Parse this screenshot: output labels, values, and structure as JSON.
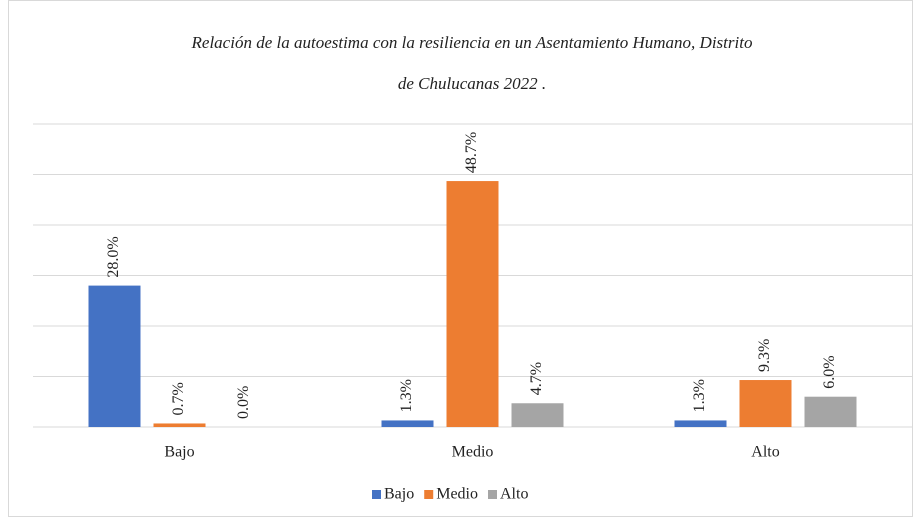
{
  "chart_data": {
    "type": "bar",
    "title": [
      "Relación de la autoestima con la resiliencia en un Asentamiento Humano, Distrito",
      "de Chulucanas 2022 ."
    ],
    "categories": [
      "Bajo",
      "Medio",
      "Alto"
    ],
    "series": [
      {
        "name": "Bajo",
        "color": "#4472c4",
        "values": [
          28.0,
          1.3,
          1.3
        ],
        "value_labels": [
          "28.0%",
          "1.3%",
          "1.3%"
        ]
      },
      {
        "name": "Medio",
        "color": "#ed7d31",
        "values": [
          0.7,
          48.7,
          9.3
        ],
        "value_labels": [
          "0.7%",
          "48.7%",
          "9.3%"
        ]
      },
      {
        "name": "Alto",
        "color": "#a5a5a5",
        "values": [
          0.0,
          4.7,
          6.0
        ],
        "value_labels": [
          "0.0%",
          "4.7%",
          "6.0%"
        ]
      }
    ],
    "ylim": [
      0,
      60
    ],
    "yticks": [
      0,
      10,
      20,
      30,
      40,
      50,
      60
    ],
    "grid": true,
    "legend": "bottom"
  }
}
